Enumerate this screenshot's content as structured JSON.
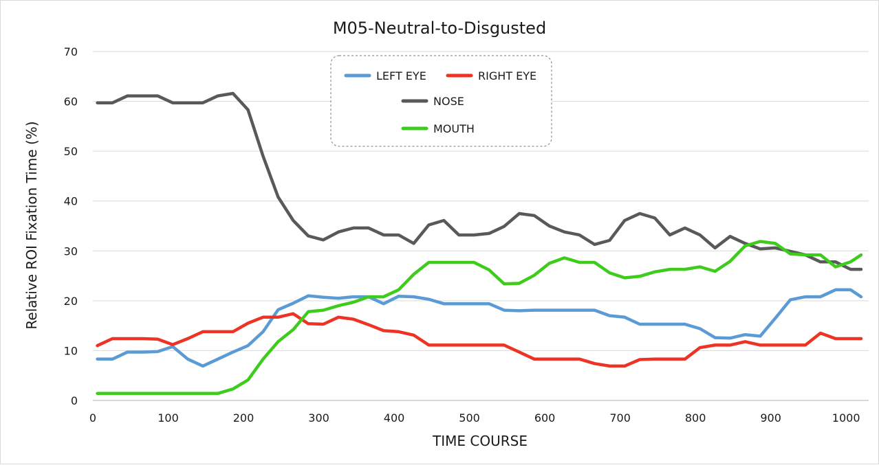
{
  "chart_data": {
    "type": "line",
    "title": "M05-Neutral-to-Disgusted",
    "xlabel": "TIME  COURSE",
    "ylabel": "Relative  ROI  Fixation  Time  (%)",
    "xlim": [
      0,
      1030
    ],
    "ylim": [
      0,
      70
    ],
    "xticks": [
      0,
      100,
      200,
      300,
      400,
      500,
      600,
      700,
      800,
      900,
      1000
    ],
    "yticks": [
      0,
      10,
      20,
      30,
      40,
      50,
      60,
      70
    ],
    "grid": "horizontal",
    "legend_position": "top-center",
    "x": [
      6,
      26,
      46,
      66,
      86,
      106,
      126,
      146,
      166,
      186,
      206,
      226,
      246,
      266,
      286,
      306,
      326,
      346,
      366,
      386,
      406,
      426,
      446,
      466,
      486,
      506,
      526,
      546,
      566,
      586,
      606,
      626,
      646,
      666,
      686,
      706,
      726,
      746,
      766,
      786,
      806,
      826,
      846,
      866,
      886,
      906,
      926,
      946,
      966,
      986,
      1006,
      1020
    ],
    "series": [
      {
        "name": "LEFT EYE",
        "color": "#5b9bd5",
        "values": [
          8.3,
          8.3,
          9.7,
          9.7,
          9.8,
          10.8,
          8.3,
          6.9,
          8.3,
          9.7,
          11.0,
          13.8,
          18.2,
          19.5,
          21.0,
          20.7,
          20.5,
          20.8,
          20.8,
          19.4,
          20.9,
          20.8,
          20.3,
          19.4,
          19.4,
          19.4,
          19.4,
          18.1,
          18.0,
          18.1,
          18.1,
          18.1,
          18.1,
          18.1,
          17.0,
          16.7,
          15.3,
          15.3,
          15.3,
          15.3,
          14.4,
          12.6,
          12.5,
          13.2,
          12.9,
          16.5,
          20.2,
          20.8,
          20.8,
          22.2,
          22.2,
          20.8
        ]
      },
      {
        "name": "RIGHT EYE",
        "color": "#ee3324",
        "values": [
          11.0,
          12.4,
          12.4,
          12.4,
          12.3,
          11.2,
          12.4,
          13.8,
          13.8,
          13.8,
          15.5,
          16.7,
          16.7,
          17.4,
          15.4,
          15.3,
          16.7,
          16.3,
          15.2,
          14.0,
          13.8,
          13.1,
          11.1,
          11.1,
          11.1,
          11.1,
          11.1,
          11.1,
          9.7,
          8.3,
          8.3,
          8.3,
          8.3,
          7.4,
          6.9,
          6.9,
          8.2,
          8.3,
          8.3,
          8.3,
          10.6,
          11.1,
          11.1,
          11.8,
          11.1,
          11.1,
          11.1,
          11.1,
          13.5,
          12.4,
          12.4,
          12.4
        ]
      },
      {
        "name": "NOSE",
        "color": "#595959",
        "values": [
          59.7,
          59.7,
          61.1,
          61.1,
          61.1,
          59.7,
          59.7,
          59.7,
          61.1,
          61.6,
          58.3,
          49.0,
          40.8,
          36.1,
          33.0,
          32.2,
          33.8,
          34.6,
          34.6,
          33.2,
          33.2,
          31.5,
          35.2,
          36.1,
          33.2,
          33.2,
          33.5,
          34.9,
          37.5,
          37.1,
          35.0,
          33.8,
          33.2,
          31.3,
          32.1,
          36.1,
          37.5,
          36.6,
          33.2,
          34.6,
          33.2,
          30.6,
          32.9,
          31.5,
          30.4,
          30.6,
          29.9,
          29.2,
          27.8,
          27.8,
          26.3,
          26.3
        ]
      },
      {
        "name": "MOUTH",
        "color": "#3dcc1c",
        "values": [
          1.4,
          1.4,
          1.4,
          1.4,
          1.4,
          1.4,
          1.4,
          1.4,
          1.4,
          2.3,
          4.1,
          8.3,
          11.8,
          14.2,
          17.8,
          18.1,
          19.0,
          19.7,
          20.8,
          20.8,
          22.2,
          25.3,
          27.7,
          27.7,
          27.7,
          27.7,
          26.2,
          23.4,
          23.5,
          25.1,
          27.5,
          28.6,
          27.7,
          27.7,
          25.6,
          24.6,
          24.9,
          25.8,
          26.3,
          26.3,
          26.8,
          25.9,
          27.9,
          31.0,
          31.9,
          31.5,
          29.4,
          29.2,
          29.2,
          26.8,
          27.8,
          29.2
        ]
      }
    ]
  }
}
